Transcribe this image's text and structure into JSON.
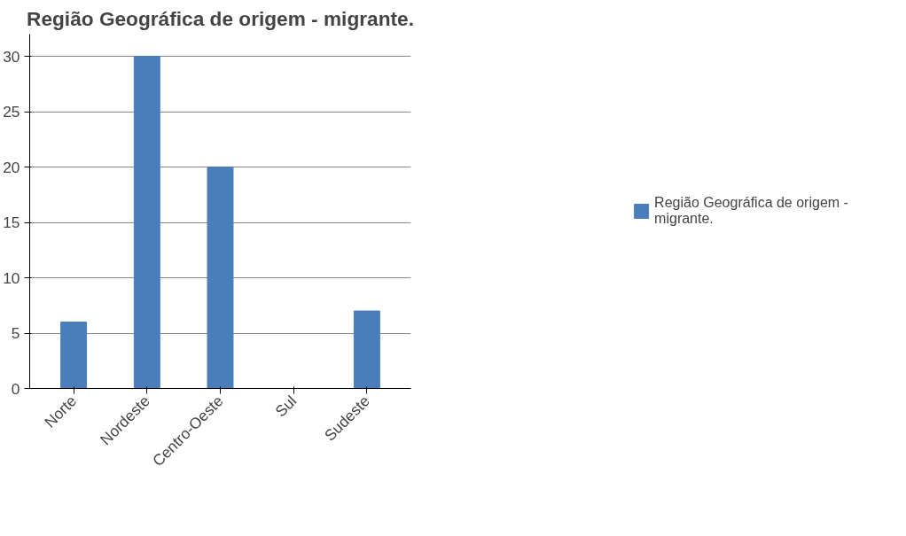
{
  "chart_data": {
    "type": "bar",
    "title": "Região Geográfica de origem - migrante.",
    "categories": [
      "Norte",
      "Nordeste",
      "Centro-Oeste",
      "Sul",
      "Sudeste"
    ],
    "series": [
      {
        "name": "Região Geográfica de origem - migrante.",
        "color": "#4a7ebb",
        "values": [
          6,
          30,
          20,
          0,
          7
        ]
      }
    ],
    "ylim": [
      0,
      32
    ],
    "yticks": [
      0,
      5,
      10,
      15,
      20,
      25,
      30
    ],
    "grid": "y",
    "legend": "right"
  }
}
